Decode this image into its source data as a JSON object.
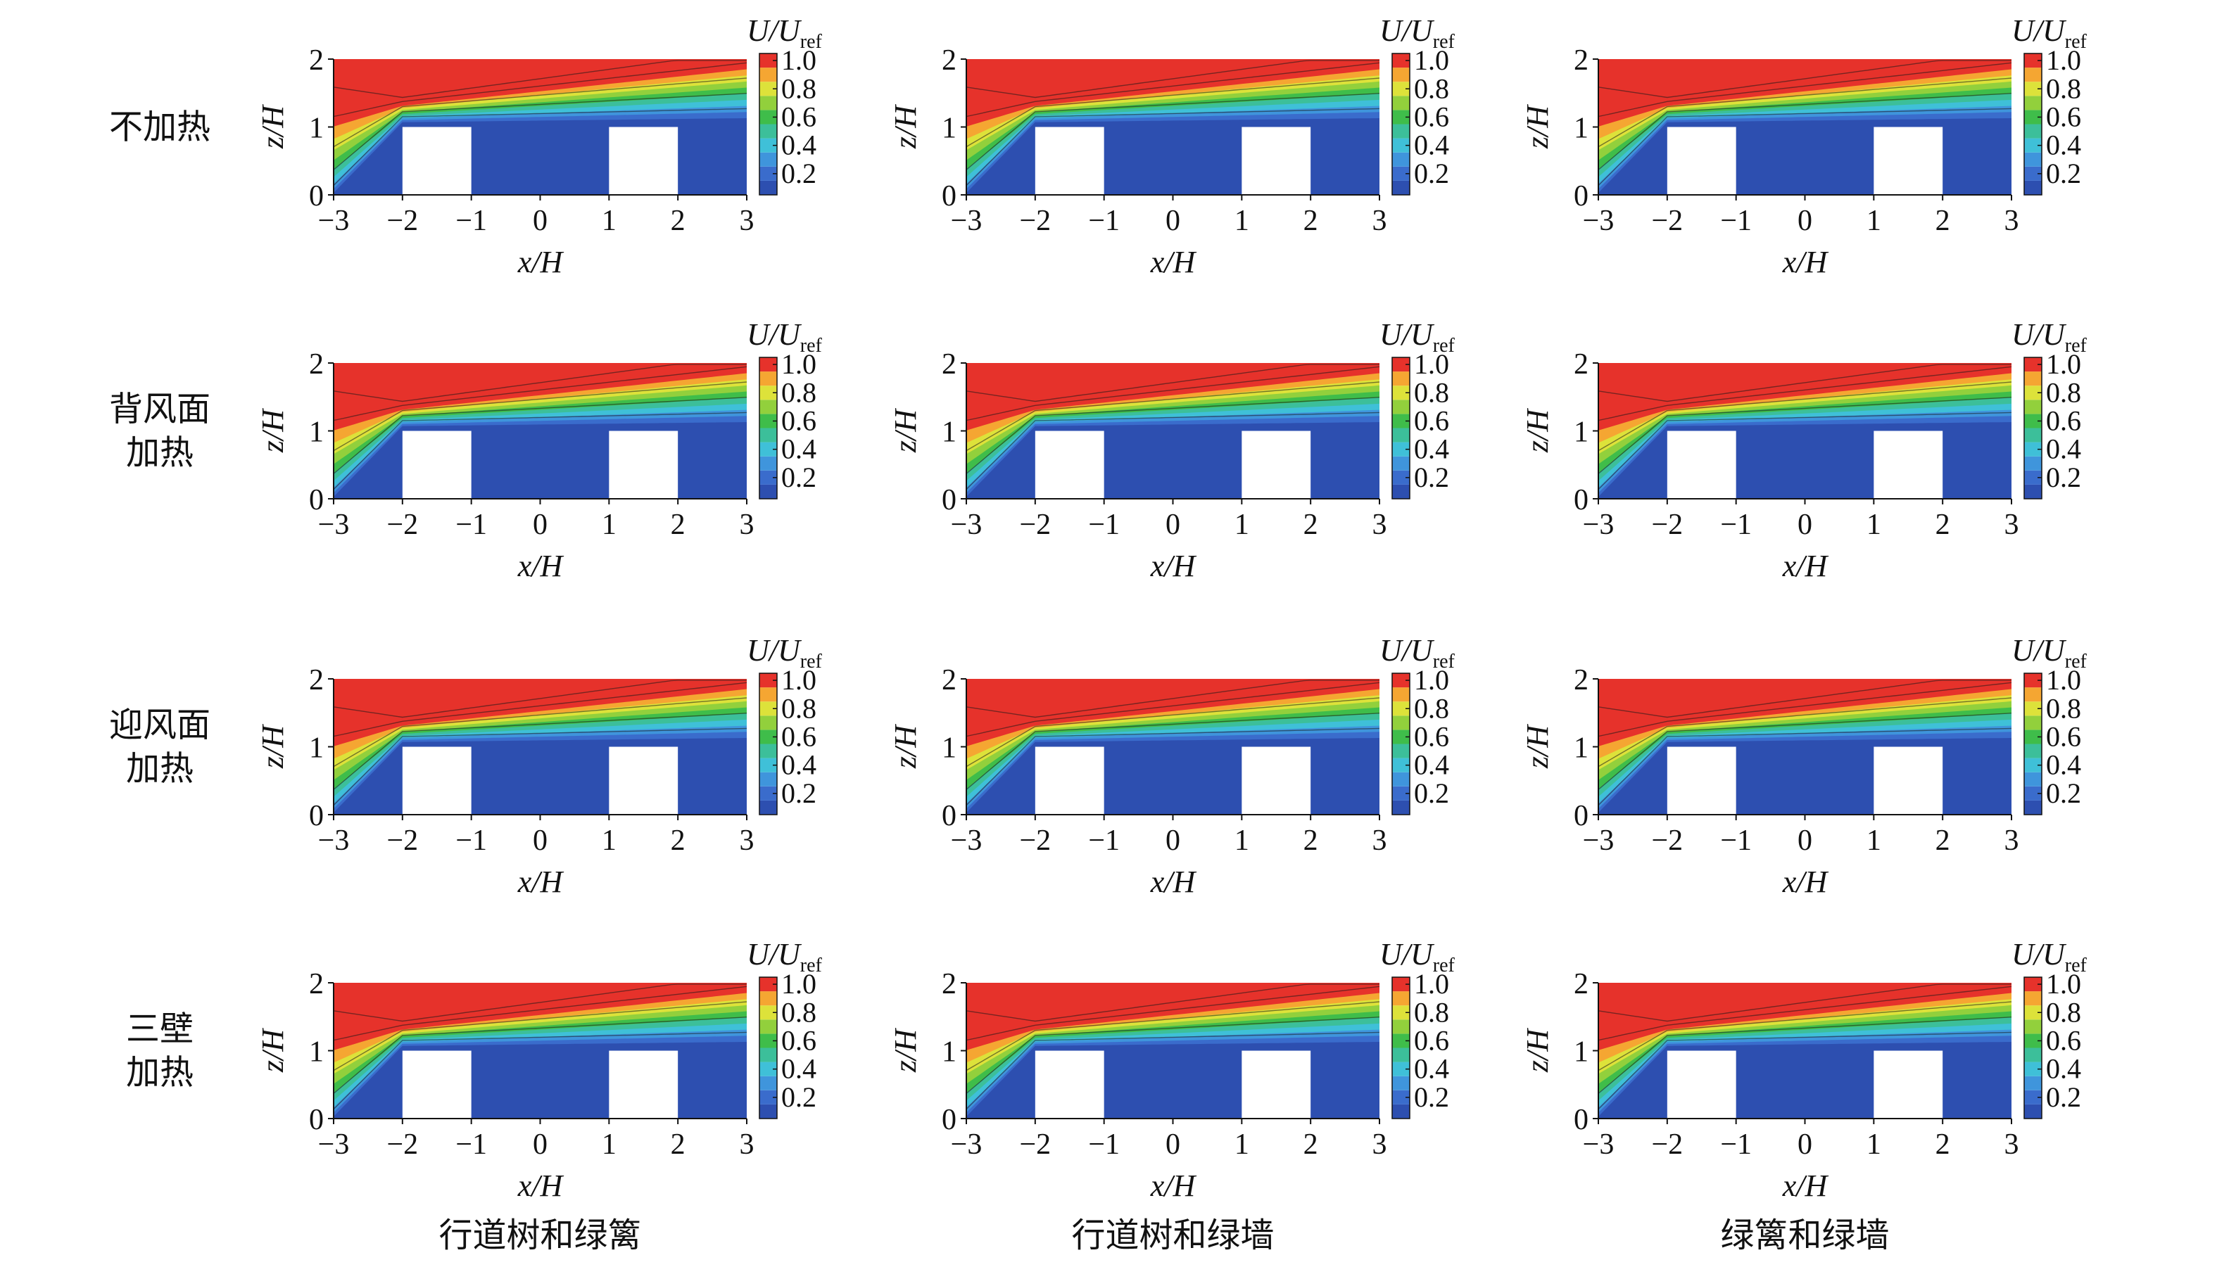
{
  "row_labels": [
    [
      "不加热"
    ],
    [
      "背风面",
      "加热"
    ],
    [
      "迎风面",
      "加热"
    ],
    [
      "三壁",
      "加热"
    ]
  ],
  "column_labels": [
    "行道树和绿篱",
    "行道树和绿墙",
    "绿篱和绿墙"
  ],
  "chart_data": [
    {
      "type": "contour",
      "xlabel": "x/H",
      "ylabel": "z/H",
      "xlim": [
        -3,
        3
      ],
      "ylim": [
        0,
        2
      ],
      "xticks": [
        {
          "value": -3,
          "label": "−3"
        },
        {
          "value": -2,
          "label": "−2"
        },
        {
          "value": -1,
          "label": "−1"
        },
        0,
        1,
        2,
        3
      ],
      "yticks": [
        0,
        1,
        2
      ],
      "colorbar_label": "U/U",
      "colorbar_label_sub": "ref",
      "clim": [
        0.05,
        1.05
      ],
      "colorbar_ticks": [
        0.2,
        0.4,
        0.6,
        0.8,
        {
          "value": 1,
          "label": "1.0"
        }
      ],
      "colors": [
        "#2d4fb0",
        "#3a6ccc",
        "#3f95dc",
        "#3fc0d8",
        "#3cbf9a",
        "#3fbd4a",
        "#92d03c",
        "#dde23a",
        "#f5a632",
        "#e6322b"
      ]
    },
    {
      "type": "contour",
      "xlabel": "x/H",
      "ylabel": "z/H",
      "xlim": [
        -3,
        3
      ],
      "ylim": [
        0,
        2
      ],
      "xticks": [
        {
          "value": -3,
          "label": "−3"
        },
        {
          "value": -2,
          "label": "−2"
        },
        {
          "value": -1,
          "label": "−1"
        },
        0,
        1,
        2,
        3
      ],
      "yticks": [
        0,
        1,
        2
      ],
      "colorbar_label": "U/U",
      "colorbar_label_sub": "ref",
      "clim": [
        0.05,
        1.05
      ],
      "colorbar_ticks": [
        0.2,
        0.4,
        0.6,
        0.8,
        {
          "value": 1,
          "label": "1.0"
        }
      ],
      "colors": [
        "#2d4fb0",
        "#3a6ccc",
        "#3f95dc",
        "#3fc0d8",
        "#3cbf9a",
        "#3fbd4a",
        "#92d03c",
        "#dde23a",
        "#f5a632",
        "#e6322b"
      ]
    },
    {
      "type": "contour",
      "xlabel": "x/H",
      "ylabel": "z/H",
      "xlim": [
        -3,
        3
      ],
      "ylim": [
        0,
        2
      ],
      "xticks": [
        {
          "value": -3,
          "label": "−3"
        },
        {
          "value": -2,
          "label": "−2"
        },
        {
          "value": -1,
          "label": "−1"
        },
        0,
        1,
        2,
        3
      ],
      "yticks": [
        0,
        1,
        2
      ],
      "colorbar_label": "U/U",
      "colorbar_label_sub": "ref",
      "clim": [
        0.05,
        1.05
      ],
      "colorbar_ticks": [
        0.2,
        0.4,
        0.6,
        0.8,
        {
          "value": 1,
          "label": "1.0"
        }
      ],
      "colors": [
        "#2d4fb0",
        "#3a6ccc",
        "#3f95dc",
        "#3fc0d8",
        "#3cbf9a",
        "#3fbd4a",
        "#92d03c",
        "#dde23a",
        "#f5a632",
        "#e6322b"
      ]
    },
    {
      "type": "contour",
      "xlabel": "x/H",
      "ylabel": "z/H",
      "xlim": [
        -3,
        3
      ],
      "ylim": [
        0,
        2
      ],
      "xticks": [
        {
          "value": -3,
          "label": "−3"
        },
        {
          "value": -2,
          "label": "−2"
        },
        {
          "value": -1,
          "label": "−1"
        },
        0,
        1,
        2,
        3
      ],
      "yticks": [
        0,
        1,
        2
      ],
      "colorbar_label": "U/U",
      "colorbar_label_sub": "ref",
      "clim": [
        0.05,
        1.05
      ],
      "colorbar_ticks": [
        0.2,
        0.4,
        0.6,
        0.8,
        {
          "value": 1,
          "label": "1.0"
        }
      ],
      "colors": [
        "#2d4fb0",
        "#3a6ccc",
        "#3f95dc",
        "#3fc0d8",
        "#3cbf9a",
        "#3fbd4a",
        "#92d03c",
        "#dde23a",
        "#f5a632",
        "#e6322b"
      ]
    },
    {
      "type": "contour",
      "xlabel": "x/H",
      "ylabel": "z/H",
      "xlim": [
        -3,
        3
      ],
      "ylim": [
        0,
        2
      ],
      "xticks": [
        {
          "value": -3,
          "label": "−3"
        },
        {
          "value": -2,
          "label": "−2"
        },
        {
          "value": -1,
          "label": "−1"
        },
        0,
        1,
        2,
        3
      ],
      "yticks": [
        0,
        1,
        2
      ],
      "colorbar_label": "U/U",
      "colorbar_label_sub": "ref",
      "clim": [
        0.05,
        1.05
      ],
      "colorbar_ticks": [
        0.2,
        0.4,
        0.6,
        0.8,
        {
          "value": 1,
          "label": "1.0"
        }
      ],
      "colors": [
        "#2d4fb0",
        "#3a6ccc",
        "#3f95dc",
        "#3fc0d8",
        "#3cbf9a",
        "#3fbd4a",
        "#92d03c",
        "#dde23a",
        "#f5a632",
        "#e6322b"
      ]
    },
    {
      "type": "contour",
      "xlabel": "x/H",
      "ylabel": "z/H",
      "xlim": [
        -3,
        3
      ],
      "ylim": [
        0,
        2
      ],
      "xticks": [
        {
          "value": -3,
          "label": "−3"
        },
        {
          "value": -2,
          "label": "−2"
        },
        {
          "value": -1,
          "label": "−1"
        },
        0,
        1,
        2,
        3
      ],
      "yticks": [
        0,
        1,
        2
      ],
      "colorbar_label": "U/U",
      "colorbar_label_sub": "ref",
      "clim": [
        0.05,
        1.05
      ],
      "colorbar_ticks": [
        0.2,
        0.4,
        0.6,
        0.8,
        {
          "value": 1,
          "label": "1.0"
        }
      ],
      "colors": [
        "#2d4fb0",
        "#3a6ccc",
        "#3f95dc",
        "#3fc0d8",
        "#3cbf9a",
        "#3fbd4a",
        "#92d03c",
        "#dde23a",
        "#f5a632",
        "#e6322b"
      ]
    },
    {
      "type": "contour",
      "xlabel": "x/H",
      "ylabel": "z/H",
      "xlim": [
        -3,
        3
      ],
      "ylim": [
        0,
        2
      ],
      "xticks": [
        {
          "value": -3,
          "label": "−3"
        },
        {
          "value": -2,
          "label": "−2"
        },
        {
          "value": -1,
          "label": "−1"
        },
        0,
        1,
        2,
        3
      ],
      "yticks": [
        0,
        1,
        2
      ],
      "colorbar_label": "U/U",
      "colorbar_label_sub": "ref",
      "clim": [
        0.05,
        1.05
      ],
      "colorbar_ticks": [
        0.2,
        0.4,
        0.6,
        0.8,
        {
          "value": 1,
          "label": "1.0"
        }
      ],
      "colors": [
        "#2d4fb0",
        "#3a6ccc",
        "#3f95dc",
        "#3fc0d8",
        "#3cbf9a",
        "#3fbd4a",
        "#92d03c",
        "#dde23a",
        "#f5a632",
        "#e6322b"
      ]
    },
    {
      "type": "contour",
      "xlabel": "x/H",
      "ylabel": "z/H",
      "xlim": [
        -3,
        3
      ],
      "ylim": [
        0,
        2
      ],
      "xticks": [
        {
          "value": -3,
          "label": "−3"
        },
        {
          "value": -2,
          "label": "−2"
        },
        {
          "value": -1,
          "label": "−1"
        },
        0,
        1,
        2,
        3
      ],
      "yticks": [
        0,
        1,
        2
      ],
      "colorbar_label": "U/U",
      "colorbar_label_sub": "ref",
      "clim": [
        0.05,
        1.05
      ],
      "colorbar_ticks": [
        0.2,
        0.4,
        0.6,
        0.8,
        {
          "value": 1,
          "label": "1.0"
        }
      ],
      "colors": [
        "#2d4fb0",
        "#3a6ccc",
        "#3f95dc",
        "#3fc0d8",
        "#3cbf9a",
        "#3fbd4a",
        "#92d03c",
        "#dde23a",
        "#f5a632",
        "#e6322b"
      ]
    },
    {
      "type": "contour",
      "xlabel": "x/H",
      "ylabel": "z/H",
      "xlim": [
        -3,
        3
      ],
      "ylim": [
        0,
        2
      ],
      "xticks": [
        {
          "value": -3,
          "label": "−3"
        },
        {
          "value": -2,
          "label": "−2"
        },
        {
          "value": -1,
          "label": "−1"
        },
        0,
        1,
        2,
        3
      ],
      "yticks": [
        0,
        1,
        2
      ],
      "colorbar_label": "U/U",
      "colorbar_label_sub": "ref",
      "clim": [
        0.05,
        1.05
      ],
      "colorbar_ticks": [
        0.2,
        0.4,
        0.6,
        0.8,
        {
          "value": 1,
          "label": "1.0"
        }
      ],
      "colors": [
        "#2d4fb0",
        "#3a6ccc",
        "#3f95dc",
        "#3fc0d8",
        "#3cbf9a",
        "#3fbd4a",
        "#92d03c",
        "#dde23a",
        "#f5a632",
        "#e6322b"
      ]
    },
    {
      "type": "contour",
      "xlabel": "x/H",
      "ylabel": "z/H",
      "xlim": [
        -3,
        3
      ],
      "ylim": [
        0,
        2
      ],
      "xticks": [
        {
          "value": -3,
          "label": "−3"
        },
        {
          "value": -2,
          "label": "−2"
        },
        {
          "value": -1,
          "label": "−1"
        },
        0,
        1,
        2,
        3
      ],
      "yticks": [
        0,
        1,
        2
      ],
      "colorbar_label": "U/U",
      "colorbar_label_sub": "ref",
      "clim": [
        0.05,
        1.05
      ],
      "colorbar_ticks": [
        0.2,
        0.4,
        0.6,
        0.8,
        {
          "value": 1,
          "label": "1.0"
        }
      ],
      "colors": [
        "#2d4fb0",
        "#3a6ccc",
        "#3f95dc",
        "#3fc0d8",
        "#3cbf9a",
        "#3fbd4a",
        "#92d03c",
        "#dde23a",
        "#f5a632",
        "#e6322b"
      ]
    },
    {
      "type": "contour",
      "xlabel": "x/H",
      "ylabel": "z/H",
      "xlim": [
        -3,
        3
      ],
      "ylim": [
        0,
        2
      ],
      "xticks": [
        {
          "value": -3,
          "label": "−3"
        },
        {
          "value": -2,
          "label": "−2"
        },
        {
          "value": -1,
          "label": "−1"
        },
        0,
        1,
        2,
        3
      ],
      "yticks": [
        0,
        1,
        2
      ],
      "colorbar_label": "U/U",
      "colorbar_label_sub": "ref",
      "clim": [
        0.05,
        1.05
      ],
      "colorbar_ticks": [
        0.2,
        0.4,
        0.6,
        0.8,
        {
          "value": 1,
          "label": "1.0"
        }
      ],
      "colors": [
        "#2d4fb0",
        "#3a6ccc",
        "#3f95dc",
        "#3fc0d8",
        "#3cbf9a",
        "#3fbd4a",
        "#92d03c",
        "#dde23a",
        "#f5a632",
        "#e6322b"
      ]
    },
    {
      "type": "contour",
      "xlabel": "x/H",
      "ylabel": "z/H",
      "xlim": [
        -3,
        3
      ],
      "ylim": [
        0,
        2
      ],
      "xticks": [
        {
          "value": -3,
          "label": "−3"
        },
        {
          "value": -2,
          "label": "−2"
        },
        {
          "value": -1,
          "label": "−1"
        },
        0,
        1,
        2,
        3
      ],
      "yticks": [
        0,
        1,
        2
      ],
      "colorbar_label": "U/U",
      "colorbar_label_sub": "ref",
      "clim": [
        0.05,
        1.05
      ],
      "colorbar_ticks": [
        0.2,
        0.4,
        0.6,
        0.8,
        {
          "value": 1,
          "label": "1.0"
        }
      ],
      "colors": [
        "#2d4fb0",
        "#3a6ccc",
        "#3f95dc",
        "#3fc0d8",
        "#3cbf9a",
        "#3fbd4a",
        "#92d03c",
        "#dde23a",
        "#f5a632",
        "#e6322b"
      ]
    }
  ]
}
